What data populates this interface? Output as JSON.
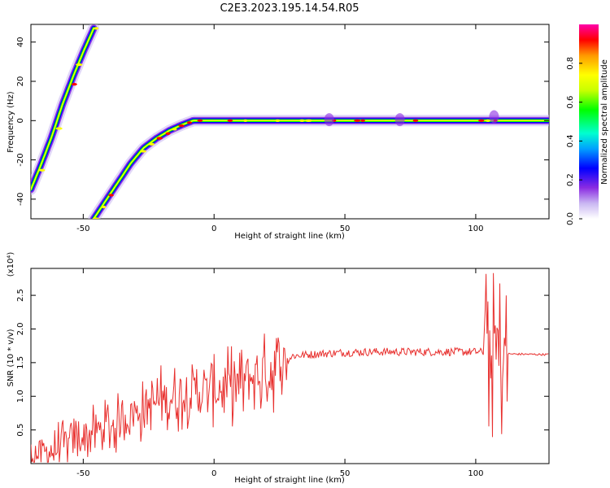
{
  "title": "C2E3.2023.195.14.54.R05",
  "colors": {
    "snr_line": "#e8302e",
    "axis": "#000000",
    "background": "#ffffff",
    "colormap": [
      "#ffffff",
      "#c9b6f2",
      "#8a2be2",
      "#0000ff",
      "#00a0ff",
      "#00ffd0",
      "#00ff00",
      "#c8ff00",
      "#ffff00",
      "#ff9900",
      "#ff0000",
      "#ff00aa"
    ]
  },
  "chart_data": [
    {
      "type": "heatmap",
      "xlabel": "Height of straight line (km)",
      "ylabel": "Frequency (Hz)",
      "xlim": [
        -70,
        128
      ],
      "ylim": [
        -50,
        49
      ],
      "xticks": [
        -50,
        0,
        50,
        100
      ],
      "yticks": [
        -40,
        -20,
        0,
        20,
        40
      ],
      "grid": false,
      "ridges": [
        {
          "name": "",
          "points": [
            [
              -70,
              -35
            ],
            [
              -66,
              -22
            ],
            [
              -62,
              -8
            ],
            [
              -58,
              8
            ],
            [
              -54,
              22
            ],
            [
              -50,
              35
            ],
            [
              -46,
              47
            ]
          ]
        },
        {
          "name": "",
          "points": [
            [
              -46,
              -50
            ],
            [
              -42,
              -42
            ],
            [
              -37,
              -32
            ],
            [
              -32,
              -22
            ],
            [
              -27,
              -14
            ],
            [
              -22,
              -9
            ],
            [
              -17,
              -5
            ],
            [
              -12,
              -2
            ],
            [
              -8,
              0
            ],
            [
              0,
              0
            ],
            [
              20,
              0
            ],
            [
              45,
              0
            ],
            [
              70,
              0
            ],
            [
              100,
              0
            ],
            [
              128,
              0
            ]
          ]
        }
      ],
      "colorbar": {
        "label": "Normalized spectral amplitude",
        "ticks": [
          "0.0",
          "0.2",
          "0.4",
          "0.6",
          "0.8"
        ],
        "range": [
          0,
          1
        ]
      }
    },
    {
      "type": "line",
      "xlabel": "Height of straight line (km)",
      "ylabel": "SNR (10 * v/v)",
      "unit_label": "(x10⁴)",
      "xlim": [
        -70,
        128
      ],
      "ylim": [
        0,
        2.9
      ],
      "xticks": [
        -50,
        0,
        50,
        100
      ],
      "yticks": [
        "0.5",
        "1.0",
        "1.5",
        "2.0",
        "2.5"
      ],
      "grid": false,
      "series": [
        {
          "name": "",
          "trend": [
            [
              -70,
              0.1
            ],
            [
              -60,
              0.22
            ],
            [
              -50,
              0.4
            ],
            [
              -40,
              0.55
            ],
            [
              -30,
              0.75
            ],
            [
              -20,
              0.95
            ],
            [
              -10,
              1.05
            ],
            [
              0,
              1.1
            ],
            [
              10,
              1.2
            ],
            [
              20,
              1.35
            ],
            [
              25,
              1.45
            ],
            [
              30,
              1.6
            ],
            [
              40,
              1.63
            ],
            [
              50,
              1.65
            ],
            [
              60,
              1.66
            ],
            [
              70,
              1.66
            ],
            [
              80,
              1.66
            ],
            [
              90,
              1.66
            ],
            [
              100,
              1.66
            ],
            [
              105,
              1.65
            ],
            [
              110,
              1.63
            ],
            [
              128,
              1.62
            ]
          ]
        }
      ]
    }
  ]
}
